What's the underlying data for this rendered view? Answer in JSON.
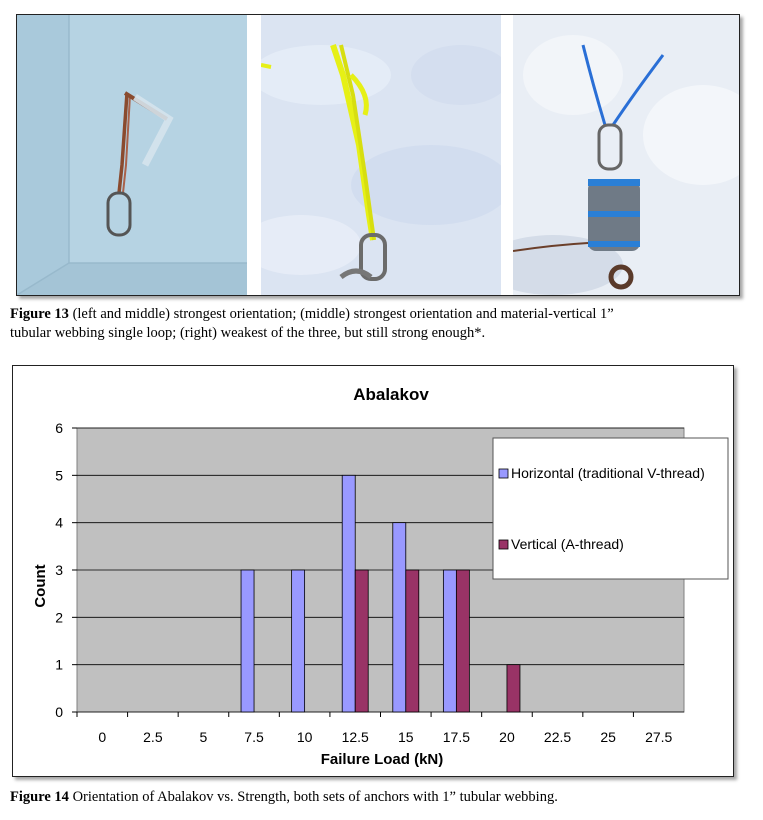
{
  "figure13": {
    "label": "Figure 13",
    "caption_line1": " (left and middle) strongest orientation; (middle) strongest orientation and material-vertical 1”",
    "caption_line2": "tubular webbing  single loop; (right) weakest of the three, but still strong enough*."
  },
  "figure14": {
    "label": "Figure 14",
    "caption": " Orientation of Abalakov vs. Strength, both sets of anchors with 1” tubular webbing."
  },
  "colors": {
    "horizontal": "#9999ff",
    "vertical": "#993366",
    "plot_bg": "#c0c0c0"
  },
  "chart_data": {
    "type": "bar",
    "title": "Abalakov",
    "xlabel": "Failure Load (kN)",
    "ylabel": "Count",
    "categories": [
      "0",
      "2.5",
      "5",
      "7.5",
      "10",
      "12.5",
      "15",
      "17.5",
      "20",
      "22.5",
      "25",
      "27.5"
    ],
    "ylim": [
      0,
      6
    ],
    "yticks": [
      0,
      1,
      2,
      3,
      4,
      5,
      6
    ],
    "grid": true,
    "legend_position": "right",
    "series": [
      {
        "name": "Horizontal (traditional V-thread)",
        "values": [
          0,
          0,
          0,
          3,
          3,
          5,
          4,
          3,
          0,
          0,
          0,
          0
        ]
      },
      {
        "name": "Vertical (A-thread)",
        "values": [
          0,
          0,
          0,
          0,
          0,
          3,
          3,
          3,
          1,
          0,
          0,
          0
        ]
      }
    ]
  }
}
